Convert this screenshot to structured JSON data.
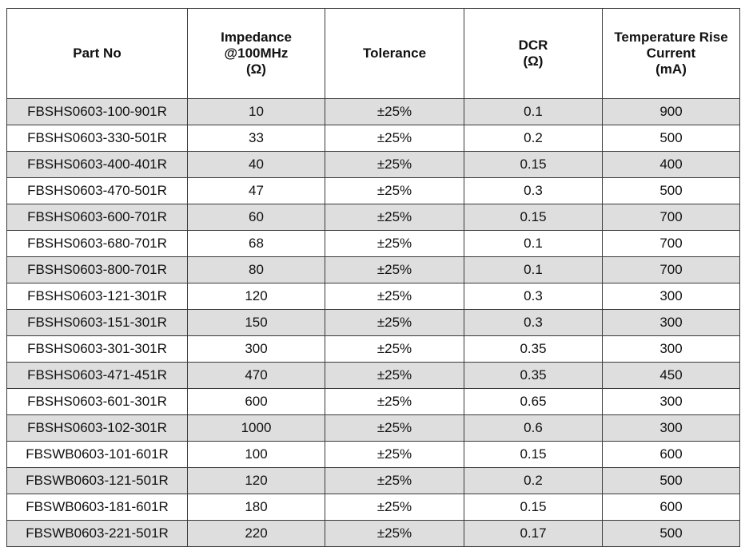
{
  "headers": {
    "part_no": [
      "Part No"
    ],
    "impedance": [
      "Impedance",
      "@100MHz",
      "(Ω)"
    ],
    "tolerance": [
      "Tolerance"
    ],
    "dcr": [
      "DCR",
      "(Ω)"
    ],
    "temp_rise": [
      "Temperature Rise",
      "Current",
      "(mA)"
    ]
  },
  "rows": [
    {
      "part": "FBSHS0603-100-901R",
      "impedance": "10",
      "tolerance": "±25%",
      "dcr": "0.1",
      "current": "900"
    },
    {
      "part": "FBSHS0603-330-501R",
      "impedance": "33",
      "tolerance": "±25%",
      "dcr": "0.2",
      "current": "500"
    },
    {
      "part": "FBSHS0603-400-401R",
      "impedance": "40",
      "tolerance": "±25%",
      "dcr": "0.15",
      "current": "400"
    },
    {
      "part": "FBSHS0603-470-501R",
      "impedance": "47",
      "tolerance": "±25%",
      "dcr": "0.3",
      "current": "500"
    },
    {
      "part": "FBSHS0603-600-701R",
      "impedance": "60",
      "tolerance": "±25%",
      "dcr": "0.15",
      "current": "700"
    },
    {
      "part": "FBSHS0603-680-701R",
      "impedance": "68",
      "tolerance": "±25%",
      "dcr": "0.1",
      "current": "700"
    },
    {
      "part": "FBSHS0603-800-701R",
      "impedance": "80",
      "tolerance": "±25%",
      "dcr": "0.1",
      "current": "700"
    },
    {
      "part": "FBSHS0603-121-301R",
      "impedance": "120",
      "tolerance": "±25%",
      "dcr": "0.3",
      "current": "300"
    },
    {
      "part": "FBSHS0603-151-301R",
      "impedance": "150",
      "tolerance": "±25%",
      "dcr": "0.3",
      "current": "300"
    },
    {
      "part": "FBSHS0603-301-301R",
      "impedance": "300",
      "tolerance": "±25%",
      "dcr": "0.35",
      "current": "300"
    },
    {
      "part": "FBSHS0603-471-451R",
      "impedance": "470",
      "tolerance": "±25%",
      "dcr": "0.35",
      "current": "450"
    },
    {
      "part": "FBSHS0603-601-301R",
      "impedance": "600",
      "tolerance": "±25%",
      "dcr": "0.65",
      "current": "300"
    },
    {
      "part": "FBSHS0603-102-301R",
      "impedance": "1000",
      "tolerance": "±25%",
      "dcr": "0.6",
      "current": "300"
    },
    {
      "part": "FBSWB0603-101-601R",
      "impedance": "100",
      "tolerance": "±25%",
      "dcr": "0.15",
      "current": "600"
    },
    {
      "part": "FBSWB0603-121-501R",
      "impedance": "120",
      "tolerance": "±25%",
      "dcr": "0.2",
      "current": "500"
    },
    {
      "part": "FBSWB0603-181-601R",
      "impedance": "180",
      "tolerance": "±25%",
      "dcr": "0.15",
      "current": "600"
    },
    {
      "part": "FBSWB0603-221-501R",
      "impedance": "220",
      "tolerance": "±25%",
      "dcr": "0.17",
      "current": "500"
    }
  ],
  "colors": {
    "stripe": "#dedede",
    "border": "#3a3a3a"
  }
}
